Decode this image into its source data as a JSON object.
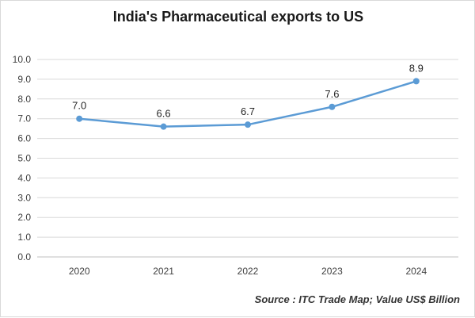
{
  "chart_data": {
    "type": "line",
    "title": "India's Pharmaceutical exports to US",
    "categories": [
      "2020",
      "2021",
      "2022",
      "2023",
      "2024"
    ],
    "series": [
      {
        "name": "Pharmaceutical exports to US",
        "values": [
          7.0,
          6.6,
          6.7,
          7.6,
          8.9
        ],
        "color": "#5b9bd5"
      }
    ],
    "data_labels": [
      "7.0",
      "6.6",
      "6.7",
      "7.6",
      "8.9"
    ],
    "y_ticks": [
      "0.0",
      "1.0",
      "2.0",
      "3.0",
      "4.0",
      "5.0",
      "6.0",
      "7.0",
      "8.0",
      "9.0",
      "10.0"
    ],
    "ylim": [
      0,
      10
    ],
    "grid": "horizontal",
    "xlabel": "",
    "ylabel": "",
    "source": "Source : ITC Trade Map; Value US$ Billion"
  }
}
